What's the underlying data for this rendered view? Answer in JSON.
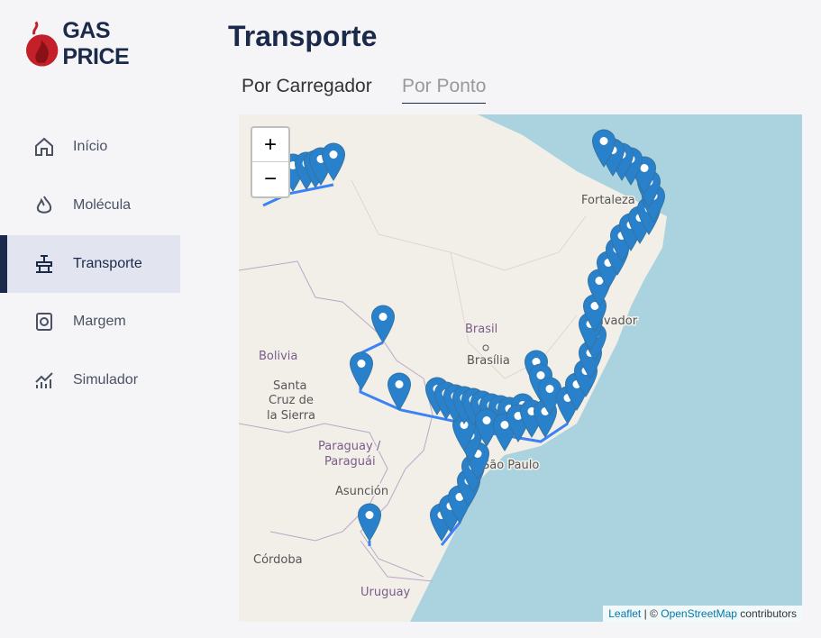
{
  "logo": "GAS PRICE",
  "nav": [
    "Início",
    "Molécula",
    "Transporte",
    "Margem",
    "Simulador"
  ],
  "title": "Transporte",
  "tabs": [
    "Por Carregador",
    "Por Ponto"
  ],
  "map": {
    "zoom_in": "+",
    "zoom_out": "−",
    "labels": [
      "Brasil",
      "Brasília",
      "Bolivia",
      "Santa",
      "Cruz de",
      "la Sierra",
      "Paraguay /",
      "Paraguái",
      "Asunción",
      "Córdoba",
      "Uruguay",
      "São Paulo",
      "Fortaleza",
      "Salvador"
    ],
    "attribution": {
      "leaflet": "Leaflet",
      "separator": "| ©",
      "osm": "OpenStreetMap",
      "suffix": "contributors"
    }
  }
}
